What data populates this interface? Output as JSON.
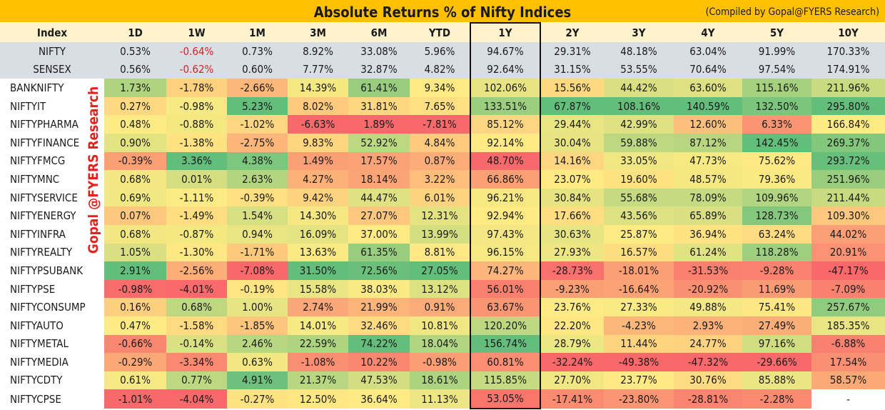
{
  "title": "Absolute Returns % of Nifty Indices",
  "credit": "(Compiled by Gopal@FYERS Research)",
  "watermark": "Gopal @FYERS Research",
  "columns": [
    "Index",
    "1D",
    "1W",
    "1M",
    "3M",
    "6M",
    "YTD",
    "1Y",
    "2Y",
    "3Y",
    "4Y",
    "5Y",
    "10Y"
  ],
  "benchmarks": [
    {
      "name": "NIFTY",
      "values": [
        "0.53%",
        "-0.64%",
        "0.73%",
        "8.92%",
        "33.08%",
        "5.96%",
        "94.67%",
        "29.31%",
        "48.18%",
        "63.04%",
        "91.99%",
        "170.33%"
      ]
    },
    {
      "name": "SENSEX",
      "values": [
        "0.56%",
        "-0.62%",
        "0.60%",
        "7.77%",
        "32.87%",
        "4.82%",
        "92.64%",
        "31.15%",
        "53.55%",
        "70.64%",
        "97.54%",
        "174.91%"
      ]
    }
  ],
  "rows": [
    {
      "name": "BANKNIFTY",
      "values": [
        "1.73%",
        "-1.78%",
        "-2.66%",
        "14.39%",
        "61.41%",
        "9.34%",
        "102.06%",
        "15.56%",
        "44.42%",
        "63.60%",
        "115.16%",
        "211.96%"
      ]
    },
    {
      "name": "NIFTYIT",
      "values": [
        "0.27%",
        "-0.98%",
        "5.23%",
        "8.02%",
        "31.81%",
        "7.65%",
        "133.51%",
        "67.87%",
        "108.16%",
        "140.59%",
        "132.50%",
        "295.80%"
      ]
    },
    {
      "name": "NIFTYPHARMA",
      "values": [
        "0.48%",
        "-0.88%",
        "-1.02%",
        "-6.63%",
        "1.89%",
        "-7.81%",
        "85.12%",
        "29.44%",
        "42.99%",
        "12.60%",
        "6.33%",
        "166.84%"
      ]
    },
    {
      "name": "NIFTYFINANCE",
      "values": [
        "0.90%",
        "-1.38%",
        "-2.75%",
        "9.83%",
        "52.92%",
        "4.84%",
        "92.14%",
        "30.04%",
        "59.88%",
        "87.12%",
        "142.45%",
        "269.37%"
      ]
    },
    {
      "name": "NIFTYFMCG",
      "values": [
        "-0.39%",
        "3.36%",
        "4.38%",
        "1.49%",
        "17.57%",
        "0.87%",
        "48.70%",
        "14.16%",
        "33.05%",
        "47.73%",
        "75.62%",
        "293.72%"
      ]
    },
    {
      "name": "NIFTYMNC",
      "values": [
        "0.68%",
        "0.01%",
        "2.63%",
        "4.27%",
        "18.14%",
        "3.22%",
        "66.86%",
        "23.07%",
        "19.60%",
        "48.57%",
        "79.36%",
        "251.96%"
      ]
    },
    {
      "name": "NIFTYSERVICE",
      "values": [
        "0.69%",
        "-1.11%",
        "-0.39%",
        "9.42%",
        "44.47%",
        "6.01%",
        "96.21%",
        "30.84%",
        "55.68%",
        "78.09%",
        "109.96%",
        "211.44%"
      ]
    },
    {
      "name": "NIFTYENERGY",
      "values": [
        "0.07%",
        "-1.49%",
        "1.54%",
        "14.30%",
        "27.07%",
        "12.31%",
        "92.94%",
        "17.66%",
        "43.56%",
        "65.89%",
        "128.73%",
        "109.30%"
      ]
    },
    {
      "name": "NIFTYINFRA",
      "values": [
        "0.68%",
        "-0.87%",
        "0.94%",
        "16.09%",
        "37.00%",
        "13.99%",
        "97.43%",
        "30.63%",
        "25.87%",
        "36.94%",
        "63.24%",
        "44.02%"
      ]
    },
    {
      "name": "NIFTYREALTY",
      "values": [
        "1.05%",
        "-1.30%",
        "-1.71%",
        "13.63%",
        "61.35%",
        "8.81%",
        "96.15%",
        "27.93%",
        "16.57%",
        "61.24%",
        "118.28%",
        "20.91%"
      ]
    },
    {
      "name": "NIFTYPSUBANK",
      "values": [
        "2.91%",
        "-2.56%",
        "-7.08%",
        "31.50%",
        "72.56%",
        "27.05%",
        "74.27%",
        "-28.73%",
        "-18.01%",
        "-31.53%",
        "-9.28%",
        "-47.17%"
      ]
    },
    {
      "name": "NIFTYPSE",
      "values": [
        "-0.98%",
        "-4.01%",
        "-0.19%",
        "15.58%",
        "38.03%",
        "13.12%",
        "56.01%",
        "-9.23%",
        "-16.64%",
        "-20.92%",
        "11.69%",
        "-7.09%"
      ]
    },
    {
      "name": "NIFTYCONSUMP",
      "values": [
        "0.16%",
        "0.68%",
        "1.00%",
        "2.74%",
        "21.99%",
        "0.91%",
        "63.67%",
        "23.76%",
        "27.33%",
        "49.88%",
        "75.41%",
        "257.67%"
      ]
    },
    {
      "name": "NIFTYAUTO",
      "values": [
        "0.47%",
        "-1.58%",
        "-1.85%",
        "14.01%",
        "32.46%",
        "10.81%",
        "120.20%",
        "22.20%",
        "-4.23%",
        "2.93%",
        "27.49%",
        "185.35%"
      ]
    },
    {
      "name": "NIFTYMETAL",
      "values": [
        "-0.66%",
        "-0.14%",
        "2.46%",
        "22.59%",
        "74.22%",
        "18.04%",
        "156.74%",
        "28.79%",
        "11.44%",
        "24.77%",
        "97.16%",
        "-6.88%"
      ]
    },
    {
      "name": "NIFTYMEDIA",
      "values": [
        "-0.29%",
        "-3.34%",
        "0.63%",
        "-1.08%",
        "10.22%",
        "-0.98%",
        "60.81%",
        "-32.24%",
        "-49.38%",
        "-47.32%",
        "-29.66%",
        "17.54%"
      ]
    },
    {
      "name": "NIFTYCDTY",
      "values": [
        "0.61%",
        "0.77%",
        "4.91%",
        "21.37%",
        "47.53%",
        "18.61%",
        "115.85%",
        "27.70%",
        "23.77%",
        "30.76%",
        "85.88%",
        "58.57%"
      ]
    },
    {
      "name": "NIFTYCPSE",
      "values": [
        "-1.01%",
        "-4.04%",
        "-0.27%",
        "12.50%",
        "36.64%",
        "11.13%",
        "53.05%",
        "-17.41%",
        "-23.80%",
        "-28.81%",
        "-2.28%",
        "-"
      ]
    }
  ],
  "colors": {
    "title_bar": "#ffc000",
    "header_bg": "#fff2cc",
    "benchmark_bg": "#d9dde4",
    "low": "#f8696b",
    "mid": "#ffeb84",
    "high": "#63be7b",
    "negative_text": "#e02020"
  }
}
